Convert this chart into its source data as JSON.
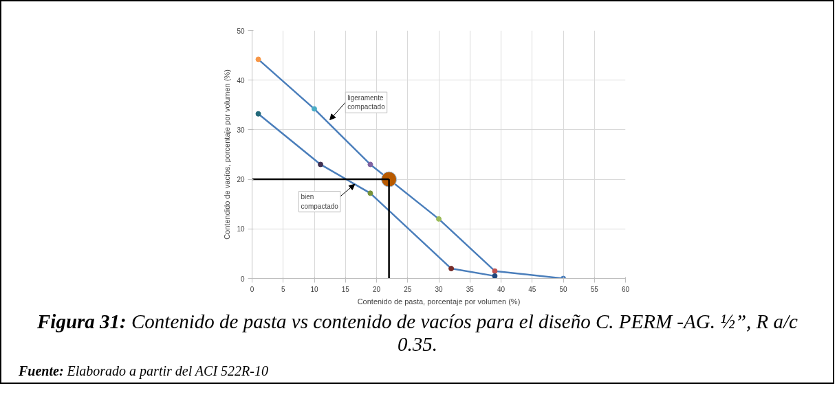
{
  "chart_data": {
    "type": "line",
    "xlabel": "Contenido de pasta, porcentaje por volumen (%)",
    "ylabel": "Contendido de vacíos, porcentaje por volumen (%)",
    "xlim": [
      0,
      60
    ],
    "xticks": [
      0,
      5,
      10,
      15,
      20,
      25,
      30,
      35,
      40,
      45,
      50,
      55,
      60
    ],
    "ylim": [
      0,
      50
    ],
    "yticks": [
      0,
      10,
      20,
      30,
      40,
      50
    ],
    "grid": true,
    "marker": "circle",
    "line_style": "solid",
    "series": [
      {
        "color": "#4a7ebb",
        "x": [
          1,
          10,
          19,
          30,
          39,
          50
        ],
        "values": [
          44.2,
          34.2,
          23,
          12,
          1.5,
          0
        ],
        "colors": [
          "#f79646",
          "#4bacc6",
          "#8064a2",
          "#9bbb59",
          "#c0504d",
          "#4f81bd"
        ]
      },
      {
        "color": "#4a7ebb",
        "x": [
          1,
          11,
          19,
          32,
          39
        ],
        "values": [
          33.2,
          23,
          17.2,
          2,
          0.5
        ],
        "colors": [
          "#23697a",
          "#403152",
          "#77933c",
          "#772c2a",
          "#1f497d"
        ]
      },
      {
        "type": "bubble",
        "color": "#b85a00",
        "x": [
          22
        ],
        "values": [
          20
        ],
        "sizes": [
          1
        ]
      },
      {
        "color": "#000000",
        "marker": "none",
        "x": [
          0,
          22
        ],
        "values": [
          20,
          20
        ]
      },
      {
        "color": "#000000",
        "marker": "none",
        "x": [
          22,
          22
        ],
        "values": [
          20,
          0
        ]
      }
    ],
    "annotations": [
      {
        "text": "ligeramente\ncompactado",
        "x": 12.5,
        "y": 32
      },
      {
        "text": "bien\ncompactado",
        "x": 16.5,
        "y": 19
      },
      "Figura 31: Contenido de pasta vs contenido de vacíos para el diseño C. PERM -AG. ½”, R a/c 0.35.",
      "Fuente: Elaborado a partir del ACI 522R-10"
    ]
  }
}
